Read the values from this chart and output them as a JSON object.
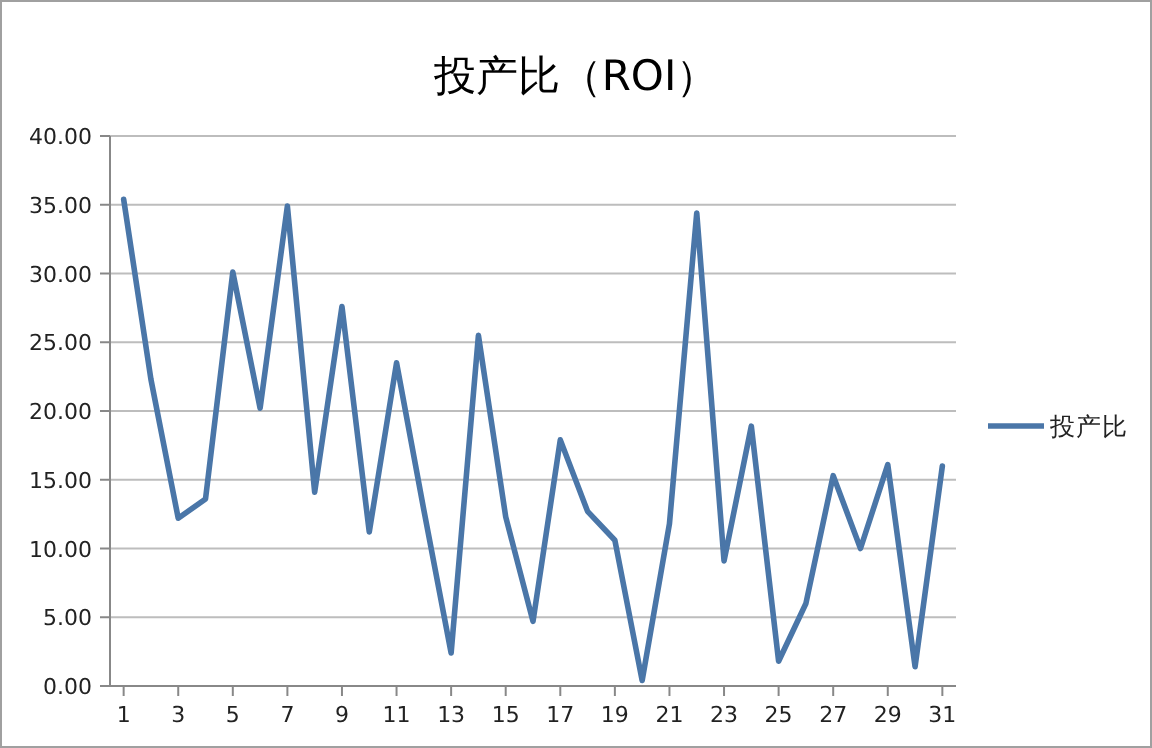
{
  "chart_data": {
    "type": "line",
    "title": "投产比（ROI）",
    "x": [
      1,
      2,
      3,
      4,
      5,
      6,
      7,
      8,
      9,
      10,
      11,
      12,
      13,
      14,
      15,
      16,
      17,
      18,
      19,
      20,
      21,
      22,
      23,
      24,
      25,
      26,
      27,
      28,
      29,
      30,
      31
    ],
    "xlim": [
      0.5,
      31.5
    ],
    "xticks": [
      1,
      3,
      5,
      7,
      9,
      11,
      13,
      15,
      17,
      19,
      21,
      23,
      25,
      27,
      29,
      31
    ],
    "series": [
      {
        "name": "投产比",
        "color": "#4a76a8",
        "values": [
          35.4,
          22.3,
          12.2,
          13.6,
          30.1,
          20.2,
          34.9,
          14.1,
          27.6,
          11.2,
          23.5,
          12.8,
          2.4,
          25.5,
          12.3,
          4.7,
          17.9,
          12.7,
          10.6,
          0.4,
          11.8,
          34.4,
          9.1,
          18.9,
          1.8,
          6.0,
          15.3,
          10.0,
          16.1,
          1.4,
          16.0
        ]
      }
    ],
    "ylim": [
      0,
      40
    ],
    "yticks": [
      {
        "value": 0,
        "label": "0.00"
      },
      {
        "value": 5,
        "label": "5.00"
      },
      {
        "value": 10,
        "label": "10.00"
      },
      {
        "value": 15,
        "label": "15.00"
      },
      {
        "value": 20,
        "label": "20.00"
      },
      {
        "value": 25,
        "label": "25.00"
      },
      {
        "value": 30,
        "label": "30.00"
      },
      {
        "value": 35,
        "label": "35.00"
      },
      {
        "value": 40,
        "label": "40.00"
      }
    ],
    "grid": "y",
    "legend": "right",
    "marker": "none",
    "line_style": "solid"
  }
}
